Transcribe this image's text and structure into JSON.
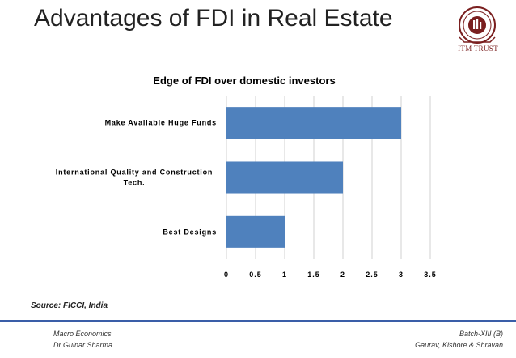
{
  "slide": {
    "title": "Advantages of FDI in Real Estate",
    "logo_caption": "ITM TRUST",
    "source": "Source: FICCI, India"
  },
  "footer": {
    "left_line1": "Macro Economics",
    "left_line2": "Dr  Gulnar Sharma",
    "right_line1": "Batch-XIII (B)",
    "right_line2": "Gaurav, Kishore & Shravan"
  },
  "chart_data": {
    "type": "bar",
    "orientation": "horizontal",
    "title": "Edge of FDI over domestic investors",
    "categories": [
      [
        "Make Available Huge Funds"
      ],
      [
        "International Quality and Construction",
        "Tech."
      ],
      [
        "Best Designs"
      ]
    ],
    "values": [
      3,
      2,
      1
    ],
    "xlim": [
      0,
      3.5
    ],
    "xticks": [
      "0",
      "0.5",
      "1",
      "1.5",
      "2",
      "2.5",
      "3",
      "3.5"
    ],
    "grid": "vertical",
    "bar_color": "#4f81bd",
    "grid_color": "#d0d0d0"
  },
  "colors": {
    "rule": "#3a5ea8",
    "logo": "#7a1f1f"
  }
}
